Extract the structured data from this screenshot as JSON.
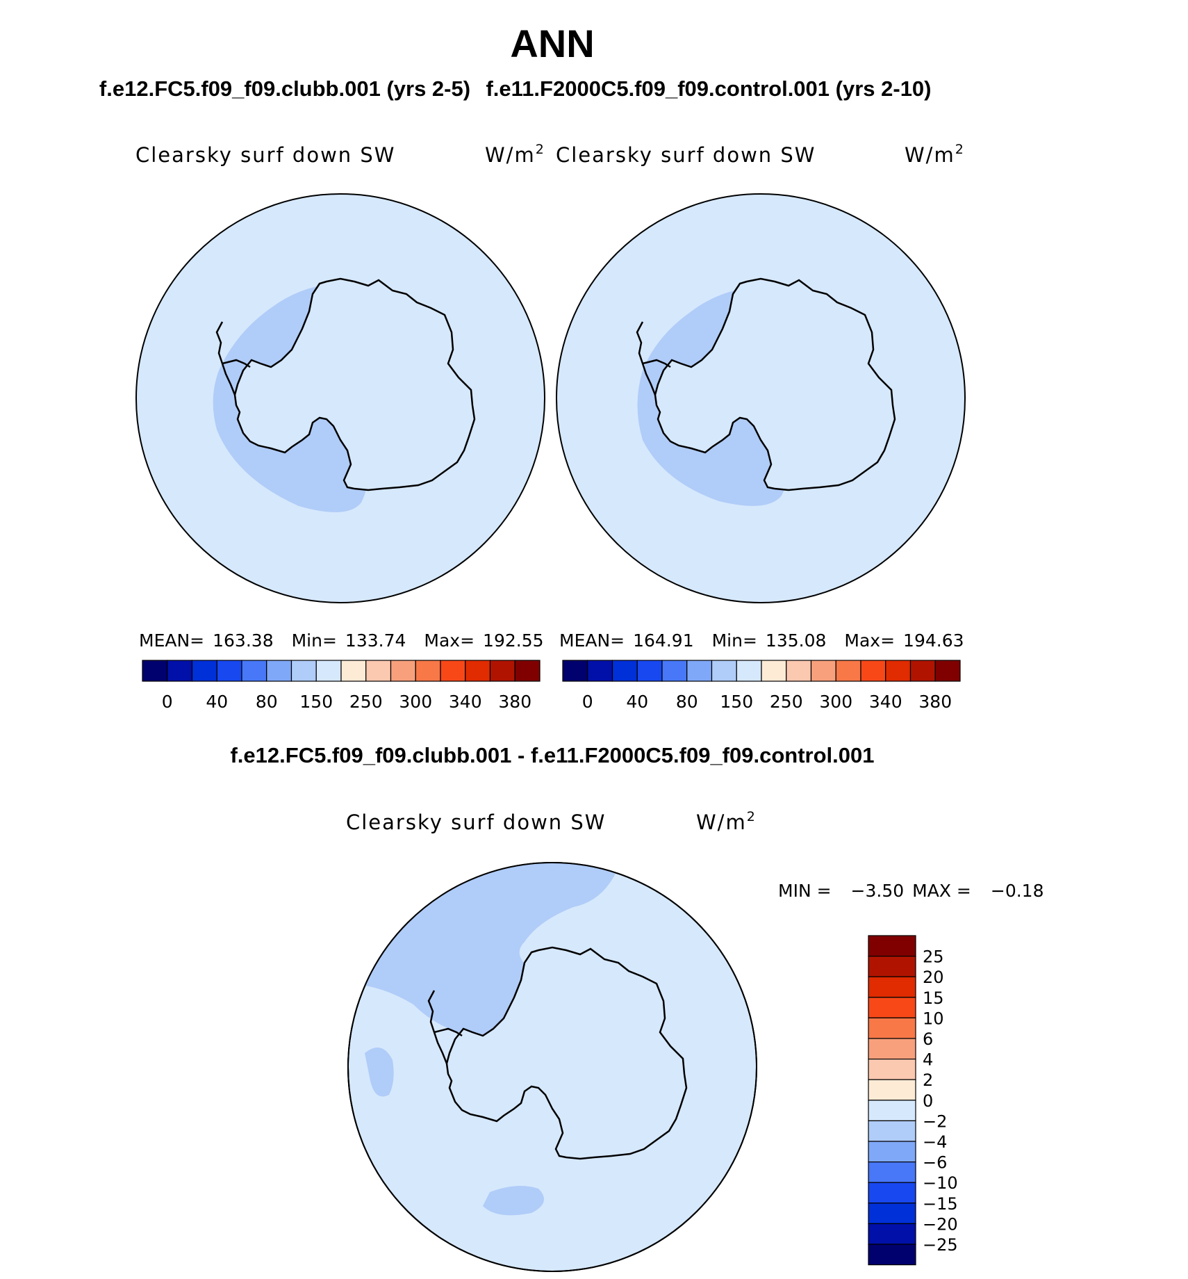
{
  "page": {
    "season": "ANN",
    "panel_left_header": "f.e12.FC5.f09_f09.clubb.001 (yrs 2-5)",
    "panel_right_header": "f.e11.F2000C5.f09_f09.control.001 (yrs 2-10)",
    "diff_header": "f.e12.FC5.f09_f09.clubb.001 - f.e11.F2000C5.f09_f09.control.001"
  },
  "panels": [
    {
      "variable": "Clearsky surf down SW",
      "units_base": "W/m",
      "units_exp": "2",
      "stats": {
        "mean_label": "MEAN=",
        "mean": "163.38",
        "min_label": "Min=",
        "min": "133.74",
        "max_label": "Max=",
        "max": "192.55"
      }
    },
    {
      "variable": "Clearsky surf down SW",
      "units_base": "W/m",
      "units_exp": "2",
      "stats": {
        "mean_label": "MEAN=",
        "mean": "164.91",
        "min_label": "Min=",
        "min": "135.08",
        "max_label": "Max=",
        "max": "194.63"
      }
    }
  ],
  "diff": {
    "variable": "Clearsky surf down SW",
    "units_base": "W/m",
    "units_exp": "2",
    "min_label": "MIN =",
    "min": "−3.50",
    "max_label": "MAX =",
    "max": "−0.18"
  },
  "colorbar_main": {
    "colors": [
      "#00006e",
      "#0010a8",
      "#0030d8",
      "#1848f0",
      "#4878f8",
      "#80a8f8",
      "#b0ccf8",
      "#d6e8fc",
      "#fdebd6",
      "#fbc8b0",
      "#f8a07c",
      "#f87848",
      "#f84818",
      "#e02c00",
      "#b01400",
      "#800000"
    ],
    "labels": [
      "0",
      "40",
      "80",
      "150",
      "250",
      "300",
      "340",
      "380"
    ]
  },
  "colorbar_diff": {
    "colors": [
      "#800000",
      "#b01400",
      "#e02c00",
      "#f84818",
      "#f87848",
      "#f8a07c",
      "#fbc8b0",
      "#fdebd6",
      "#d6e8fc",
      "#b0ccf8",
      "#80a8f8",
      "#4878f8",
      "#1848f0",
      "#0030d8",
      "#0010a8",
      "#00006e"
    ],
    "labels": [
      "25",
      "20",
      "15",
      "10",
      "6",
      "4",
      "2",
      "0",
      "−2",
      "−4",
      "−6",
      "−10",
      "−15",
      "−20",
      "−25"
    ]
  },
  "map_colors": {
    "ocean_fill": "#d6e8fc",
    "band_fill": "#b0ccf8",
    "coast": "#000000"
  }
}
